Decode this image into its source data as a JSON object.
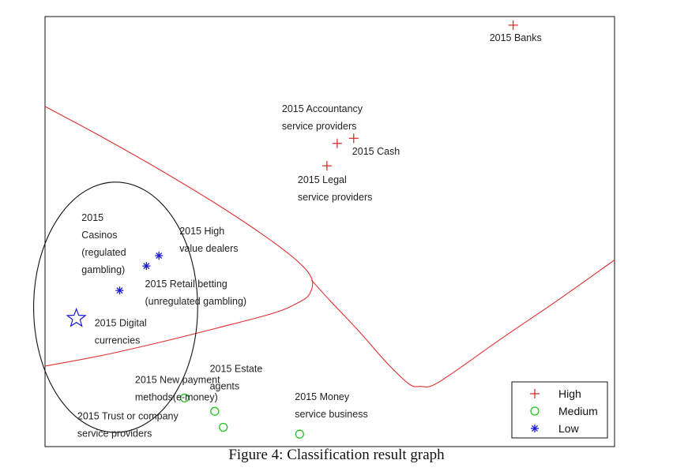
{
  "caption": "Figure 4: Classification result graph",
  "chart_data": {
    "type": "scatter",
    "title": "",
    "xlabel": "",
    "ylabel": "",
    "xlim": [
      0,
      100
    ],
    "ylim": [
      0,
      100
    ],
    "grid": false,
    "legend_position": "bottom-right",
    "colors": {
      "High": "#d62020",
      "Medium": "#22c322",
      "Low": "#1a1ad8",
      "boundary": "#e03030",
      "circle": "#111111"
    },
    "series": [
      {
        "name": "High",
        "marker": "plus",
        "points": [
          {
            "x": 82.2,
            "y": 98.0,
            "label": [
              "2015 Banks"
            ]
          },
          {
            "x": 51.3,
            "y": 70.5,
            "label": [
              "2015 Accountancy",
              "service providers"
            ]
          },
          {
            "x": 54.2,
            "y": 71.7,
            "label": [
              "2015 Cash"
            ]
          },
          {
            "x": 49.5,
            "y": 65.3,
            "label": [
              "2015 Legal",
              "service providers"
            ]
          }
        ]
      },
      {
        "name": "Medium",
        "marker": "circle",
        "points": [
          {
            "x": 24.5,
            "y": 11.3,
            "label": [
              "2015 Estate",
              "agents"
            ]
          },
          {
            "x": 29.8,
            "y": 8.2,
            "label": [
              "2015 Trust or  company",
              "service providers"
            ]
          },
          {
            "x": 31.3,
            "y": 4.5,
            "label": []
          },
          {
            "x": 44.7,
            "y": 2.9,
            "label": [
              "2015 Money",
              "service business"
            ]
          }
        ]
      },
      {
        "name": "Low",
        "marker": "asterisk",
        "points": [
          {
            "x": 17.8,
            "y": 42.0,
            "label": [
              "2015",
              "Casinos",
              "(regulated",
              "gambling)"
            ]
          },
          {
            "x": 20.0,
            "y": 44.4,
            "label": [
              "2015 High",
              "value dealers"
            ]
          },
          {
            "x": 13.1,
            "y": 36.3,
            "label": [
              "2015 Retail betting",
              "(unregulated gambling)"
            ]
          }
        ]
      },
      {
        "name": "",
        "marker": "star",
        "points": [
          {
            "x": 5.5,
            "y": 29.8,
            "label": [
              "2015 Digital",
              "currencies"
            ]
          }
        ]
      },
      {
        "name": "",
        "marker": "none",
        "points": [
          {
            "x": 9.0,
            "y": 14.0,
            "label": [
              "2015 New payment",
              "methods(e-money)"
            ]
          }
        ]
      }
    ],
    "boundary": [
      [
        [
          0,
          79.1
        ],
        [
          10,
          72.0
        ],
        [
          20,
          64.5
        ],
        [
          30,
          56.5
        ],
        [
          38,
          49.5
        ],
        [
          44,
          43.5
        ],
        [
          46.8,
          39.2
        ],
        [
          46.5,
          35.6
        ],
        [
          44.5,
          33.5
        ],
        [
          40,
          31.0
        ],
        [
          30,
          27.5
        ],
        [
          20,
          24.2
        ],
        [
          10,
          21.2
        ],
        [
          0,
          18.7
        ]
      ],
      [
        [
          46.8,
          38.7
        ],
        [
          50,
          34.0
        ],
        [
          55,
          27.0
        ],
        [
          60,
          19.5
        ],
        [
          64,
          14.5
        ],
        [
          66,
          14.0
        ],
        [
          68,
          14.2
        ],
        [
          72,
          17.5
        ],
        [
          80,
          25.0
        ],
        [
          90,
          34.0
        ],
        [
          100,
          43.4
        ]
      ]
    ],
    "circle": {
      "cx": 12.4,
      "cy": 32.4,
      "rx": 14.4,
      "ry": 29.1
    },
    "legend": [
      {
        "label": "High",
        "marker": "plus"
      },
      {
        "label": "Medium",
        "marker": "circle"
      },
      {
        "label": "Low",
        "marker": "asterisk"
      }
    ]
  }
}
